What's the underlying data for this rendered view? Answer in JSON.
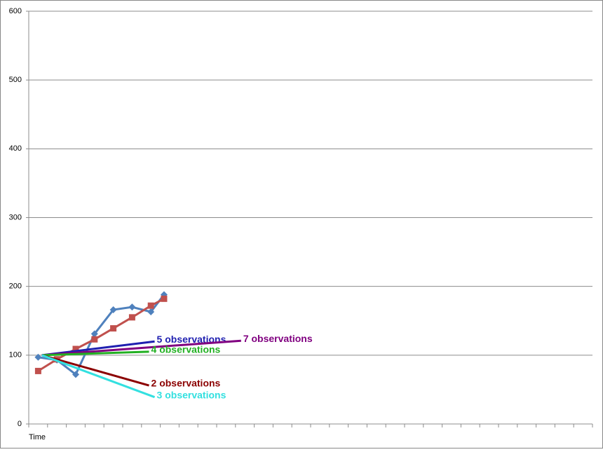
{
  "chart_data": {
    "type": "line",
    "x_label": "Time",
    "xlim": [
      0,
      30
    ],
    "ylim": [
      0,
      600
    ],
    "yticks": [
      0,
      100,
      200,
      300,
      400,
      500,
      600
    ],
    "grid": true,
    "series": [
      {
        "color": "#4f81bd",
        "marker": "diamond",
        "x": [
          0.5,
          1.5,
          2.5,
          3.5,
          4.5,
          5.5,
          6.5,
          7.2
        ],
        "values": [
          97,
          93,
          72,
          131,
          166,
          170,
          163,
          188
        ]
      },
      {
        "color": "#c0504d",
        "marker": "square",
        "x": [
          0.5,
          1.5,
          2.5,
          3.5,
          4.5,
          5.5,
          6.5,
          7.2
        ],
        "values": [
          77,
          94,
          109,
          123,
          139,
          155,
          172,
          182
        ]
      }
    ],
    "trendlines": [
      {
        "name": "5 observations",
        "color": "#1f1fb0",
        "x": [
          0.7,
          6.7
        ],
        "values": [
          100,
          120
        ]
      },
      {
        "name": "7 observations",
        "color": "#800080",
        "x": [
          0.7,
          11.3
        ],
        "values": [
          100,
          121
        ]
      },
      {
        "name": "4 observations",
        "color": "#22b022",
        "x": [
          0.7,
          6.4
        ],
        "values": [
          100,
          105
        ]
      },
      {
        "name": "2 observations",
        "color": "#8b0000",
        "x": [
          0.7,
          6.4
        ],
        "values": [
          100,
          56
        ]
      },
      {
        "name": "3 observations",
        "color": "#33e0e0",
        "x": [
          0.7,
          6.7
        ],
        "values": [
          100,
          39
        ]
      }
    ]
  }
}
